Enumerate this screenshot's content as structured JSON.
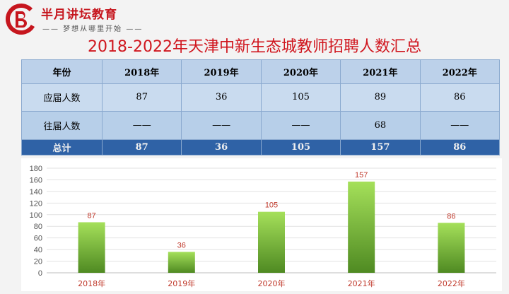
{
  "logo": {
    "title": "半月讲坛教育",
    "slogan": "—— 梦想从哪里开始 ——"
  },
  "page_title": "2018-2022年天津中新生态城教师招聘人数汇总",
  "table": {
    "header": [
      "年份",
      "2018年",
      "2019年",
      "2020年",
      "2021年",
      "2022年"
    ],
    "rows": [
      {
        "label": "应届人数",
        "cells": [
          "87",
          "36",
          "105",
          "89",
          "86"
        ]
      },
      {
        "label": "往届人数",
        "cells": [
          "——",
          "——",
          "——",
          "68",
          "——"
        ]
      },
      {
        "label": "总计",
        "cells": [
          "87",
          "36",
          "105",
          "157",
          "86"
        ]
      }
    ]
  },
  "colors": {
    "accent": "#d0161e",
    "bar_top": "#a5e05a",
    "bar_bottom": "#4f8a22",
    "total_row": "#2f62a6"
  },
  "chart_data": {
    "type": "bar",
    "categories": [
      "2018年",
      "2019年",
      "2020年",
      "2021年",
      "2022年"
    ],
    "values": [
      87,
      36,
      105,
      157,
      86
    ],
    "ylim": [
      0,
      180
    ],
    "yticks": [
      0,
      20,
      40,
      60,
      80,
      100,
      120,
      140,
      160,
      180
    ],
    "grid": true,
    "data_labels": true,
    "title": "",
    "xlabel": "",
    "ylabel": ""
  }
}
